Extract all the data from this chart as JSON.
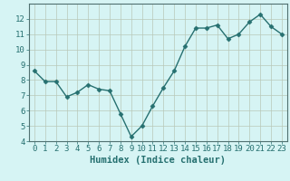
{
  "x": [
    0,
    1,
    2,
    3,
    4,
    5,
    6,
    7,
    8,
    9,
    10,
    11,
    12,
    13,
    14,
    15,
    16,
    17,
    18,
    19,
    20,
    21,
    22,
    23
  ],
  "y": [
    8.6,
    7.9,
    7.9,
    6.9,
    7.2,
    7.7,
    7.4,
    7.3,
    5.8,
    4.3,
    5.0,
    6.3,
    7.5,
    8.6,
    10.2,
    11.4,
    11.4,
    11.6,
    10.7,
    11.0,
    11.8,
    12.3,
    11.5,
    11.0
  ],
  "line_color": "#267070",
  "marker": "D",
  "marker_size": 2.5,
  "background_color": "#d6f4f4",
  "grid_color": "#b8c8b8",
  "xlabel": "Humidex (Indice chaleur)",
  "ylim": [
    4,
    13
  ],
  "xlim": [
    -0.5,
    23.5
  ],
  "yticks": [
    4,
    5,
    6,
    7,
    8,
    9,
    10,
    11,
    12
  ],
  "xticks": [
    0,
    1,
    2,
    3,
    4,
    5,
    6,
    7,
    8,
    9,
    10,
    11,
    12,
    13,
    14,
    15,
    16,
    17,
    18,
    19,
    20,
    21,
    22,
    23
  ],
  "tick_fontsize": 6.5,
  "xlabel_fontsize": 7.5,
  "line_width": 1.0,
  "fig_width": 3.2,
  "fig_height": 2.0,
  "dpi": 100
}
